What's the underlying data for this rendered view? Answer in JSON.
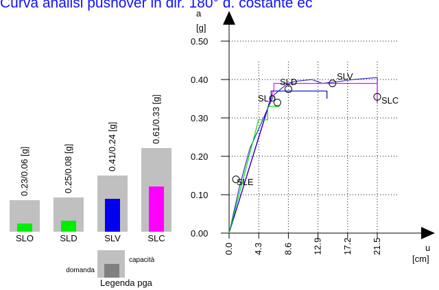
{
  "title": "Curva analisi pushover in dir. 180° d. costante ec",
  "chart_data": [
    {
      "type": "line",
      "yaxis_letter": "a",
      "yaxis_unit": "[g]",
      "xaxis_letter": "u",
      "xaxis_unit": "[cm]",
      "x_ticks": [
        "0.0",
        "4.3",
        "8.6",
        "12.9",
        "17.2",
        "21.5"
      ],
      "y_ticks": [
        "0.00",
        "0.10",
        "0.20",
        "0.30",
        "0.40",
        "0.50"
      ],
      "xlim": [
        0,
        26
      ],
      "ylim": [
        0,
        0.5
      ],
      "series": [
        {
          "color": "#3030c0",
          "x": [
            0,
            1.5,
            3,
            4.5,
            6.5,
            8.5,
            9.5,
            12,
            13.5,
            16,
            18,
            21.5,
            21.5
          ],
          "y": [
            0,
            0.12,
            0.22,
            0.28,
            0.36,
            0.39,
            0.395,
            0.4,
            0.39,
            0.395,
            0.4,
            0.405,
            0.34
          ]
        },
        {
          "color": "#ff00ff",
          "x": [
            0,
            6.5,
            6.5,
            21.5,
            21.5
          ],
          "y": [
            0,
            0.375,
            0.39,
            0.39,
            0.35
          ]
        },
        {
          "color": "#0000cc",
          "x": [
            0,
            6.1,
            6.1,
            14.2,
            14.2
          ],
          "y": [
            0,
            0.355,
            0.37,
            0.37,
            0.35
          ]
        },
        {
          "color": "#00dd00",
          "x": [
            0,
            4.2,
            4.2,
            5.6,
            5.6,
            7.3
          ],
          "y": [
            0,
            0.29,
            0.295,
            0.295,
            0.33,
            0.33
          ]
        }
      ],
      "points": [
        {
          "label": "SLE",
          "x": 1.0,
          "y": 0.14
        },
        {
          "label": "SLO",
          "x": 7.0,
          "y": 0.34
        },
        {
          "label": "SLD",
          "x": 8.6,
          "y": 0.375
        },
        {
          "label": "SLV",
          "x": 15.0,
          "y": 0.39
        },
        {
          "label": "SLC",
          "x": 21.5,
          "y": 0.355
        }
      ]
    },
    {
      "type": "bar",
      "categories": [
        "SLO",
        "SLD",
        "SLV",
        "SLC"
      ],
      "value_labels": [
        "0.23/0.06 [g]",
        "0.25/0.08 [g]",
        "0.41/0.24 [g]",
        "0.61/0.33 [g]"
      ],
      "capacity": [
        0.23,
        0.25,
        0.41,
        0.61
      ],
      "demand": [
        0.06,
        0.08,
        0.24,
        0.33
      ],
      "demand_colors": [
        "#00ee00",
        "#00ee00",
        "#0000ee",
        "#ff00ff"
      ],
      "capacity_color": "#c0c0c0"
    }
  ],
  "legend": {
    "demand_label": "domanda",
    "capacity_label": "capacità",
    "caption": "Legenda pga",
    "demand_color": "#808080",
    "capacity_color": "#c0c0c0"
  }
}
